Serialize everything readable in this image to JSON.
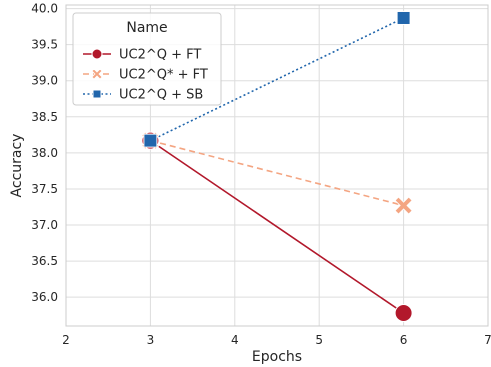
{
  "chart_data": {
    "type": "line",
    "xlabel": "Epochs",
    "ylabel": "Accuracy",
    "xlim": [
      2,
      7
    ],
    "ylim": [
      35.6,
      40.05
    ],
    "xticks": [
      2,
      3,
      4,
      5,
      6,
      7
    ],
    "yticks": [
      36.0,
      36.5,
      37.0,
      37.5,
      38.0,
      38.5,
      39.0,
      39.5,
      40.0
    ],
    "ytick_labels": [
      "36.0",
      "36.5",
      "37.0",
      "37.5",
      "38.0",
      "38.5",
      "39.0",
      "39.5",
      "40.0"
    ],
    "grid": true,
    "legend": {
      "title": "Name",
      "placement": "top-left"
    },
    "series": [
      {
        "name": "UC2^Q + FT",
        "x": [
          3,
          6
        ],
        "y": [
          38.17,
          35.78
        ],
        "color": "#b2182b",
        "dash": "solid",
        "marker": "circle"
      },
      {
        "name": "UC2^Q* + FT",
        "x": [
          3,
          6
        ],
        "y": [
          38.17,
          37.27
        ],
        "color": "#f4a582",
        "dash": "dashed",
        "marker": "x"
      },
      {
        "name": "UC2^Q + SB",
        "x": [
          3,
          6
        ],
        "y": [
          38.17,
          39.87
        ],
        "color": "#2166ac",
        "dash": "dotted",
        "marker": "square"
      }
    ]
  }
}
